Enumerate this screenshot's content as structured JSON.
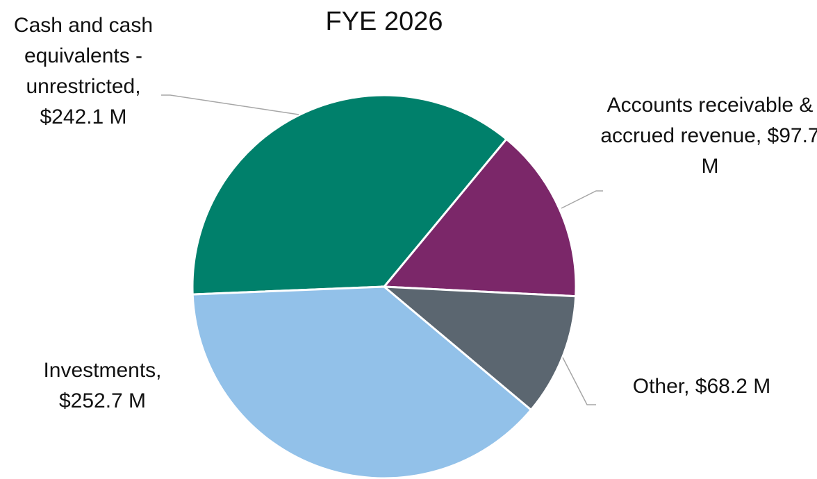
{
  "chart_data": {
    "type": "pie",
    "title": "FYE 2026",
    "labels": [
      "Cash and cash equivalents - unrestricted, $242.1 M",
      "Accounts receivable & accrued revenue, $97.7 M",
      "Other, $68.2 M",
      "Investments, $252.7 M"
    ],
    "values": [
      242.1,
      97.7,
      68.2,
      252.7
    ],
    "colors": [
      "#00806b",
      "#7b2769",
      "#5b6670",
      "#92c1e9"
    ]
  }
}
